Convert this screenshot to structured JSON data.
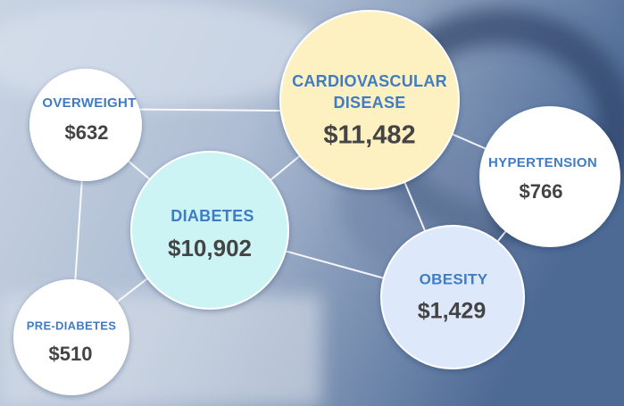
{
  "nodes": [
    {
      "label": "OVERWEIGHT",
      "value": "$632"
    },
    {
      "label": "CARDIOVASCULAR",
      "label2": "DISEASE",
      "value": "$11,482"
    },
    {
      "label": "HYPERTENSION",
      "value": "$766"
    },
    {
      "label": "DIABETES",
      "value": "$10,902"
    },
    {
      "label": "OBESITY",
      "value": "$1,429"
    },
    {
      "label": "PRE-DIABETES",
      "value": "$510"
    }
  ]
}
